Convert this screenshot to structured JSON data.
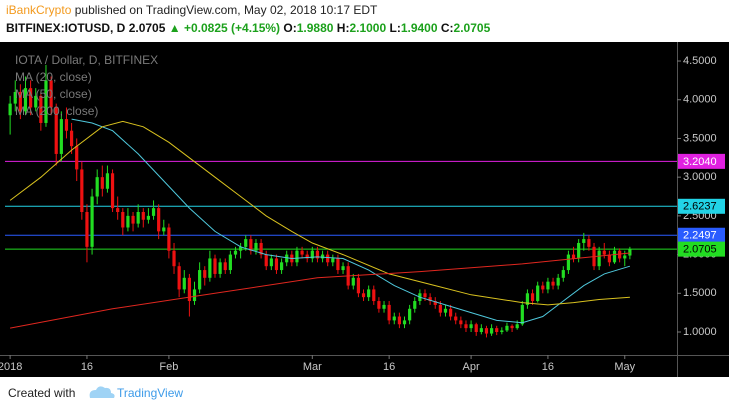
{
  "header": {
    "author": "iBankCrypto",
    "published": "published on TradingView.com, May 02, 2018 10:17 EDT",
    "symbol": "BITFINEX:IOTUSD, D",
    "price": "2.0705",
    "arrow": "▲",
    "change": "+0.0825 (+4.15%)",
    "ohlc": [
      {
        "label": "O:",
        "value": "1.9880"
      },
      {
        "label": "H:",
        "value": "2.1000"
      },
      {
        "label": "L:",
        "value": "1.9400"
      },
      {
        "label": "C:",
        "value": "2.0705"
      }
    ]
  },
  "chart_data": {
    "type": "candlestick",
    "title": "IOTA / Dollar, D, BITFINEX",
    "up_color": "#22dd22",
    "down_color": "#ee1111",
    "ohlc": [
      [
        3.8,
        4.05,
        3.55,
        3.95
      ],
      [
        3.95,
        4.25,
        3.85,
        4.1
      ],
      [
        4.1,
        4.2,
        3.75,
        3.85
      ],
      [
        3.85,
        4.3,
        3.8,
        4.15
      ],
      [
        4.15,
        4.25,
        3.8,
        3.9
      ],
      [
        3.9,
        4.15,
        3.85,
        4.05
      ],
      [
        4.05,
        4.1,
        3.6,
        3.7
      ],
      [
        3.7,
        4.45,
        3.65,
        4.25
      ],
      [
        4.25,
        4.3,
        3.8,
        3.9
      ],
      [
        3.9,
        3.95,
        3.15,
        3.3
      ],
      [
        3.3,
        3.85,
        3.2,
        3.75
      ],
      [
        3.75,
        3.9,
        3.5,
        3.6
      ],
      [
        3.6,
        3.7,
        3.3,
        3.4
      ],
      [
        3.4,
        3.5,
        2.95,
        3.1
      ],
      [
        3.1,
        3.2,
        2.45,
        2.55
      ],
      [
        2.55,
        2.65,
        1.9,
        2.1
      ],
      [
        2.1,
        2.85,
        2.0,
        2.75
      ],
      [
        2.75,
        3.1,
        2.65,
        3.0
      ],
      [
        3.0,
        3.15,
        2.75,
        2.85
      ],
      [
        2.85,
        3.15,
        2.8,
        3.05
      ],
      [
        3.05,
        3.1,
        2.55,
        2.6
      ],
      [
        2.6,
        2.75,
        2.45,
        2.55
      ],
      [
        2.55,
        2.6,
        2.25,
        2.35
      ],
      [
        2.35,
        2.6,
        2.3,
        2.5
      ],
      [
        2.5,
        2.55,
        2.3,
        2.4
      ],
      [
        2.4,
        2.65,
        2.35,
        2.55
      ],
      [
        2.55,
        2.6,
        2.35,
        2.45
      ],
      [
        2.45,
        2.6,
        2.4,
        2.5
      ],
      [
        2.5,
        2.7,
        2.45,
        2.6
      ],
      [
        2.6,
        2.65,
        2.2,
        2.3
      ],
      [
        2.3,
        2.45,
        2.25,
        2.35
      ],
      [
        2.35,
        2.4,
        1.95,
        2.05
      ],
      [
        2.05,
        2.15,
        1.75,
        1.85
      ],
      [
        1.85,
        1.9,
        1.45,
        1.55
      ],
      [
        1.55,
        1.8,
        1.5,
        1.7
      ],
      [
        1.7,
        1.75,
        1.2,
        1.4
      ],
      [
        1.4,
        1.65,
        1.35,
        1.55
      ],
      [
        1.55,
        1.9,
        1.5,
        1.8
      ],
      [
        1.8,
        1.85,
        1.6,
        1.7
      ],
      [
        1.7,
        2.05,
        1.65,
        1.95
      ],
      [
        1.95,
        2.0,
        1.7,
        1.75
      ],
      [
        1.75,
        1.95,
        1.7,
        1.9
      ],
      [
        1.9,
        1.95,
        1.75,
        1.8
      ],
      [
        1.8,
        2.05,
        1.75,
        2.0
      ],
      [
        2.0,
        2.1,
        1.95,
        2.05
      ],
      [
        2.05,
        2.15,
        1.95,
        2.1
      ],
      [
        2.1,
        2.25,
        2.05,
        2.2
      ],
      [
        2.2,
        2.25,
        2.0,
        2.05
      ],
      [
        2.05,
        2.2,
        2.0,
        2.15
      ],
      [
        2.15,
        2.2,
        1.95,
        2.0
      ],
      [
        2.0,
        2.05,
        1.8,
        1.85
      ],
      [
        1.85,
        2.0,
        1.8,
        1.95
      ],
      [
        1.95,
        2.0,
        1.75,
        1.8
      ],
      [
        1.8,
        1.95,
        1.75,
        1.9
      ],
      [
        1.9,
        2.05,
        1.85,
        2.0
      ],
      [
        2.0,
        2.05,
        1.85,
        1.9
      ],
      [
        1.9,
        2.1,
        1.85,
        2.05
      ],
      [
        2.05,
        2.1,
        1.95,
        2.0
      ],
      [
        2.0,
        2.05,
        1.9,
        1.95
      ],
      [
        1.95,
        2.1,
        1.9,
        2.05
      ],
      [
        2.05,
        2.1,
        1.9,
        1.95
      ],
      [
        1.95,
        2.05,
        1.9,
        2.0
      ],
      [
        2.0,
        2.05,
        1.85,
        1.9
      ],
      [
        1.9,
        2.0,
        1.85,
        1.95
      ],
      [
        1.95,
        2.0,
        1.75,
        1.8
      ],
      [
        1.8,
        1.9,
        1.75,
        1.85
      ],
      [
        1.85,
        1.9,
        1.55,
        1.6
      ],
      [
        1.6,
        1.75,
        1.55,
        1.7
      ],
      [
        1.7,
        1.75,
        1.45,
        1.5
      ],
      [
        1.5,
        1.55,
        1.4,
        1.45
      ],
      [
        1.45,
        1.6,
        1.4,
        1.55
      ],
      [
        1.55,
        1.6,
        1.35,
        1.4
      ],
      [
        1.4,
        1.45,
        1.25,
        1.3
      ],
      [
        1.3,
        1.4,
        1.25,
        1.35
      ],
      [
        1.35,
        1.4,
        1.1,
        1.15
      ],
      [
        1.15,
        1.25,
        1.1,
        1.2
      ],
      [
        1.2,
        1.25,
        1.05,
        1.1
      ],
      [
        1.1,
        1.2,
        1.05,
        1.15
      ],
      [
        1.15,
        1.35,
        1.1,
        1.3
      ],
      [
        1.3,
        1.45,
        1.25,
        1.4
      ],
      [
        1.4,
        1.55,
        1.35,
        1.5
      ],
      [
        1.5,
        1.55,
        1.4,
        1.45
      ],
      [
        1.45,
        1.5,
        1.35,
        1.4
      ],
      [
        1.4,
        1.45,
        1.3,
        1.35
      ],
      [
        1.35,
        1.4,
        1.2,
        1.25
      ],
      [
        1.25,
        1.35,
        1.2,
        1.3
      ],
      [
        1.3,
        1.35,
        1.15,
        1.2
      ],
      [
        1.2,
        1.25,
        1.1,
        1.15
      ],
      [
        1.15,
        1.2,
        1.05,
        1.1
      ],
      [
        1.1,
        1.15,
        1.0,
        1.05
      ],
      [
        1.05,
        1.15,
        1.0,
        1.1
      ],
      [
        1.1,
        1.12,
        0.95,
        1.0
      ],
      [
        1.0,
        1.1,
        0.97,
        1.05
      ],
      [
        1.05,
        1.08,
        0.93,
        0.98
      ],
      [
        0.98,
        1.1,
        0.95,
        1.05
      ],
      [
        1.05,
        1.08,
        0.96,
        1.0
      ],
      [
        1.0,
        1.06,
        0.97,
        1.02
      ],
      [
        1.02,
        1.12,
        1.0,
        1.08
      ],
      [
        1.08,
        1.1,
        1.0,
        1.05
      ],
      [
        1.05,
        1.15,
        1.03,
        1.1
      ],
      [
        1.1,
        1.4,
        1.08,
        1.35
      ],
      [
        1.35,
        1.55,
        1.3,
        1.5
      ],
      [
        1.5,
        1.55,
        1.35,
        1.4
      ],
      [
        1.4,
        1.65,
        1.38,
        1.6
      ],
      [
        1.6,
        1.65,
        1.5,
        1.55
      ],
      [
        1.55,
        1.7,
        1.5,
        1.65
      ],
      [
        1.65,
        1.7,
        1.55,
        1.6
      ],
      [
        1.6,
        1.75,
        1.55,
        1.7
      ],
      [
        1.7,
        1.85,
        1.65,
        1.8
      ],
      [
        1.8,
        2.05,
        1.75,
        2.0
      ],
      [
        2.0,
        2.1,
        1.9,
        1.95
      ],
      [
        1.95,
        2.2,
        1.9,
        2.15
      ],
      [
        2.15,
        2.28,
        2.05,
        2.2
      ],
      [
        2.2,
        2.25,
        2.05,
        2.1
      ],
      [
        2.1,
        2.15,
        1.8,
        1.85
      ],
      [
        1.85,
        2.1,
        1.8,
        2.05
      ],
      [
        2.05,
        2.15,
        1.95,
        2.0
      ],
      [
        2.0,
        2.05,
        1.85,
        1.9
      ],
      [
        1.9,
        2.1,
        1.88,
        2.05
      ],
      [
        2.05,
        2.08,
        1.9,
        1.95
      ],
      [
        1.95,
        2.05,
        1.85,
        1.988
      ],
      [
        1.988,
        2.1,
        1.94,
        2.0705
      ]
    ],
    "series": [
      {
        "name": "MA (20, close)",
        "color": "#4fc8dc",
        "x": [
          12,
          16,
          20,
          25,
          30,
          35,
          40,
          45,
          50,
          55,
          60,
          65,
          70,
          75,
          80,
          85,
          90,
          95,
          100,
          104,
          108,
          112,
          116,
          121
        ],
        "values": [
          3.75,
          3.7,
          3.6,
          3.3,
          2.95,
          2.6,
          2.3,
          2.1,
          2.0,
          1.95,
          1.97,
          1.95,
          1.8,
          1.6,
          1.45,
          1.35,
          1.25,
          1.15,
          1.12,
          1.2,
          1.4,
          1.6,
          1.75,
          1.85
        ]
      },
      {
        "name": "MA (50, close)",
        "color": "#d9c21f",
        "x": [
          0,
          6,
          12,
          18,
          22,
          26,
          31,
          40,
          45,
          50,
          55,
          59,
          65,
          74,
          83,
          90,
          100,
          105,
          110,
          115,
          121
        ],
        "values": [
          2.7,
          3.0,
          3.35,
          3.65,
          3.72,
          3.65,
          3.45,
          3.0,
          2.75,
          2.5,
          2.3,
          2.15,
          2.0,
          1.75,
          1.6,
          1.48,
          1.38,
          1.35,
          1.38,
          1.42,
          1.45
        ]
      },
      {
        "name": "MA (200, close)",
        "color": "#e0271f",
        "x": [
          0,
          20,
          40,
          60,
          80,
          100,
          121
        ],
        "values": [
          1.05,
          1.3,
          1.5,
          1.7,
          1.78,
          1.88,
          2.02
        ]
      }
    ],
    "price_lines": [
      {
        "value": 3.204,
        "label": "3.2040",
        "color": "#e020e0",
        "text_color": "#ffffff"
      },
      {
        "value": 2.6237,
        "label": "2.6237",
        "color": "#22d3e6",
        "text_color": "#000000"
      },
      {
        "value": 2.2497,
        "label": "2.2497",
        "color": "#2a5cff",
        "text_color": "#ffffff"
      },
      {
        "value": 2.0705,
        "label": "2.0705",
        "color": "#22dd22",
        "text_color": "#000000"
      }
    ],
    "ylim": [
      0.703,
      4.707
    ],
    "yticks": [
      {
        "value": 1,
        "label": "1.0000"
      },
      {
        "value": 1.5,
        "label": "1.5000"
      },
      {
        "value": 2,
        "label": "2.0000"
      },
      {
        "value": 2.5,
        "label": "2.5000"
      },
      {
        "value": 3,
        "label": "3.0000"
      },
      {
        "value": 3.5,
        "label": "3.5000"
      },
      {
        "value": 4,
        "label": "4.0000"
      },
      {
        "value": 4.5,
        "label": "4.5000"
      }
    ],
    "xlim": [
      -1,
      130.2
    ],
    "xticks": [
      {
        "value": 0,
        "label": "2018"
      },
      {
        "value": 15,
        "label": "16"
      },
      {
        "value": 31,
        "label": "Feb"
      },
      {
        "value": 59,
        "label": "Mar"
      },
      {
        "value": 74,
        "label": "16"
      },
      {
        "value": 90,
        "label": "Apr"
      },
      {
        "value": 105,
        "label": "16"
      },
      {
        "value": 120,
        "label": "May"
      }
    ],
    "grid": false
  },
  "footer": {
    "created": "Created with",
    "brand": "TradingView"
  }
}
